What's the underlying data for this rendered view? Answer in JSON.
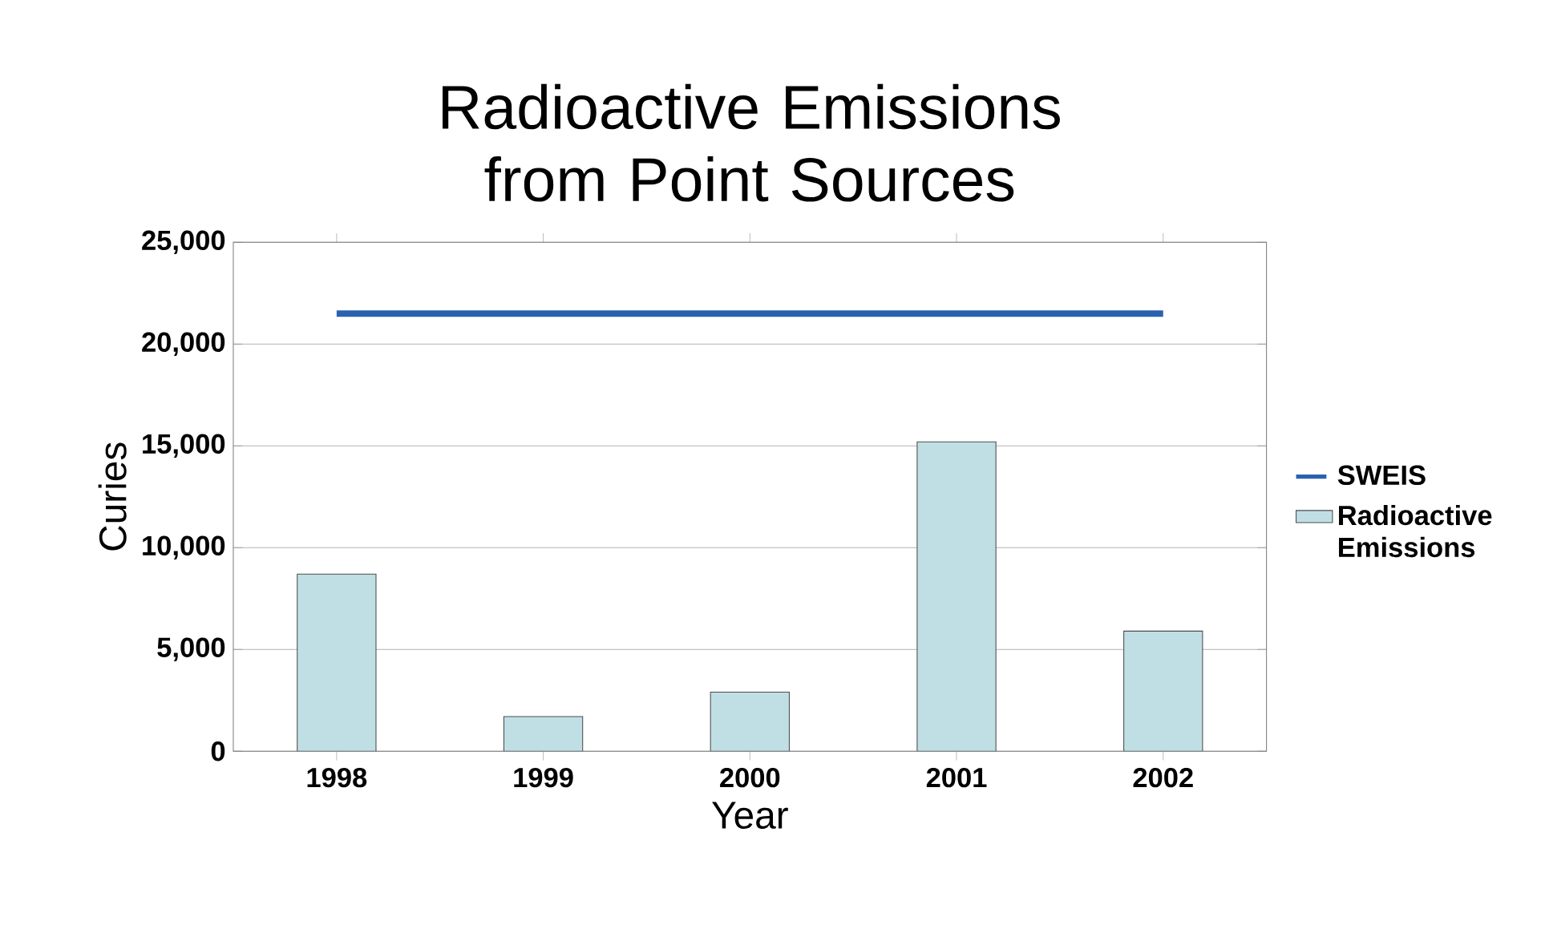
{
  "chart_data": {
    "type": "bar",
    "title": "Radioactive Emissions from Point Sources",
    "xlabel": "Year",
    "ylabel": "Curies",
    "categories": [
      "1998",
      "1999",
      "2000",
      "2001",
      "2002"
    ],
    "series": [
      {
        "name": "SWEIS",
        "type": "line",
        "color": "#2a62b0",
        "values": [
          21500,
          21500,
          21500,
          21500,
          21500
        ]
      },
      {
        "name": "Radioactive Emissions",
        "color": "#c0dfe4",
        "values": [
          8700,
          1700,
          2900,
          15200,
          5900
        ]
      }
    ],
    "ylim": [
      0,
      25000
    ],
    "yticks": [
      {
        "value": 0,
        "label": "0"
      },
      {
        "value": 5000,
        "label": "5,000"
      },
      {
        "value": 10000,
        "label": "10,000"
      },
      {
        "value": 15000,
        "label": "15,000"
      },
      {
        "value": 20000,
        "label": "20,000"
      },
      {
        "value": 25000,
        "label": "25,000"
      }
    ],
    "grid": "y",
    "legend": "right"
  }
}
